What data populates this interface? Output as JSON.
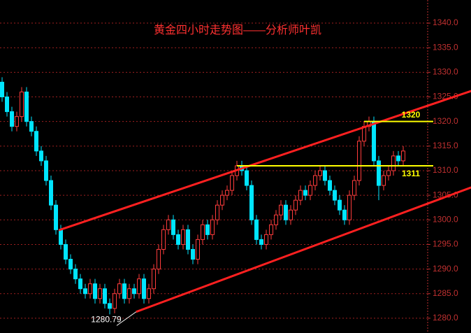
{
  "chart_data": {
    "type": "candlestick",
    "title": "黄金四小时走势图——分析师叶凯",
    "open": [
      1328,
      1325,
      1322,
      1319,
      1321,
      1326,
      1320,
      1318,
      1314,
      1312,
      1308,
      1303,
      1298,
      1295,
      1292,
      1290,
      1288,
      1286,
      1285,
      1287,
      1284,
      1286,
      1283,
      1282,
      1285,
      1287,
      1284,
      1286,
      1285,
      1288,
      1284,
      1286,
      1290,
      1294,
      1298,
      1300,
      1297,
      1295,
      1298,
      1294,
      1292,
      1296,
      1299,
      1297,
      1300,
      1303,
      1305,
      1306,
      1309,
      1311,
      1310,
      1307,
      1300,
      1296,
      1295,
      1297,
      1299,
      1301,
      1303,
      1300,
      1302,
      1304,
      1306,
      1305,
      1307,
      1309,
      1310,
      1308,
      1306,
      1304,
      1302,
      1300,
      1305,
      1308,
      1316,
      1319,
      1320,
      1312,
      1307,
      1309,
      1310,
      1313,
      1312
    ],
    "high": [
      1329,
      1326,
      1323,
      1322,
      1327,
      1327,
      1321,
      1319,
      1315,
      1313,
      1309,
      1304,
      1299,
      1296,
      1293,
      1291,
      1289,
      1287,
      1288,
      1288,
      1287,
      1287,
      1284,
      1286,
      1288,
      1288,
      1287,
      1287,
      1289,
      1289,
      1287,
      1291,
      1295,
      1299,
      1301,
      1301,
      1298,
      1299,
      1299,
      1295,
      1297,
      1300,
      1300,
      1301,
      1304,
      1306,
      1307,
      1310,
      1312,
      1312,
      1311,
      1308,
      1301,
      1297,
      1298,
      1300,
      1302,
      1304,
      1304,
      1303,
      1305,
      1307,
      1307,
      1308,
      1310,
      1311,
      1311,
      1309,
      1307,
      1305,
      1303,
      1306,
      1309,
      1317,
      1320,
      1321,
      1321,
      1313,
      1310,
      1311,
      1314,
      1314,
      1315
    ],
    "low": [
      1324,
      1321,
      1318,
      1318,
      1320,
      1319,
      1317,
      1313,
      1311,
      1307,
      1302,
      1297,
      1294,
      1291,
      1289,
      1287,
      1285,
      1284,
      1284,
      1283,
      1283,
      1282,
      1280.79,
      1281,
      1284,
      1283,
      1283,
      1284,
      1284,
      1283,
      1283,
      1285,
      1289,
      1293,
      1297,
      1296,
      1294,
      1294,
      1293,
      1291,
      1291,
      1295,
      1296,
      1296,
      1299,
      1302,
      1304,
      1305,
      1308,
      1309,
      1306,
      1299,
      1295,
      1294,
      1294,
      1296,
      1298,
      1300,
      1299,
      1299,
      1301,
      1303,
      1304,
      1304,
      1306,
      1308,
      1307,
      1305,
      1303,
      1301,
      1299,
      1299,
      1304,
      1307,
      1315,
      1318,
      1311,
      1304,
      1306,
      1308,
      1309,
      1311,
      1311
    ],
    "close": [
      1325,
      1322,
      1319,
      1321,
      1326,
      1320,
      1318,
      1314,
      1312,
      1308,
      1303,
      1298,
      1295,
      1292,
      1290,
      1288,
      1286,
      1285,
      1287,
      1284,
      1286,
      1283,
      1282,
      1285,
      1287,
      1284,
      1286,
      1285,
      1288,
      1284,
      1286,
      1290,
      1294,
      1298,
      1300,
      1297,
      1295,
      1298,
      1294,
      1292,
      1296,
      1299,
      1297,
      1300,
      1303,
      1305,
      1306,
      1309,
      1311,
      1310,
      1307,
      1300,
      1296,
      1295,
      1297,
      1299,
      1301,
      1303,
      1300,
      1302,
      1304,
      1306,
      1305,
      1307,
      1309,
      1310,
      1308,
      1306,
      1304,
      1302,
      1300,
      1305,
      1308,
      1316,
      1319,
      1320,
      1312,
      1307,
      1309,
      1310,
      1313,
      1312,
      1314
    ],
    "up_color": "#ff3c3c",
    "down_color": "#00e5ff",
    "ylim": [
      1277,
      1344.7
    ],
    "yticks": [
      {
        "value": 1280,
        "label": "1280.0"
      },
      {
        "value": 1285,
        "label": "1285.0"
      },
      {
        "value": 1290,
        "label": "1290.0"
      },
      {
        "value": 1295,
        "label": "1295.0"
      },
      {
        "value": 1300,
        "label": "1300.0"
      },
      {
        "value": 1305,
        "label": "1305.0"
      },
      {
        "value": 1310,
        "label": "1310.0"
      },
      {
        "value": 1315,
        "label": "1315.0"
      },
      {
        "value": 1320,
        "label": "1320.0"
      },
      {
        "value": 1325,
        "label": "1325.0"
      },
      {
        "value": 1330,
        "label": "1330.0"
      },
      {
        "value": 1335,
        "label": "1335.0"
      },
      {
        "value": 1340,
        "label": "1340.0"
      }
    ],
    "grid": true,
    "levels": [
      {
        "value": 1320,
        "start": 74,
        "color": "#ffff00"
      },
      {
        "value": 1311,
        "start": 48,
        "color": "#ffff00"
      }
    ],
    "trendlines": [
      {
        "x": [
          11.6,
          95.9
        ],
        "y": [
          1297.9,
          1326.2
        ],
        "color": "#ff2020"
      },
      {
        "x": [
          27.4,
          95.9
        ],
        "y": [
          1281.3,
          1306.6
        ],
        "color": "#ff2020"
      }
    ]
  }
}
